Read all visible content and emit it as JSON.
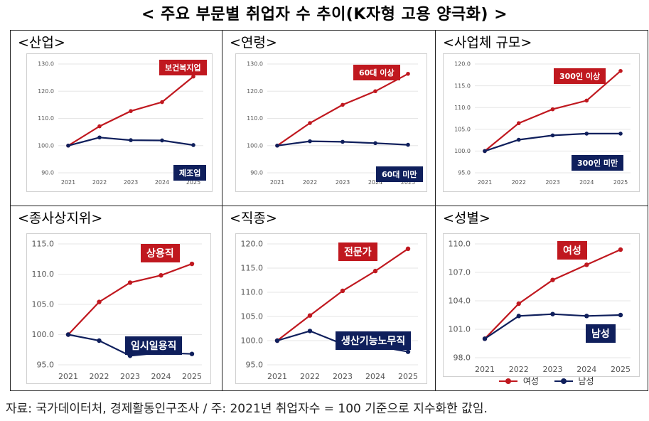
{
  "page": {
    "title": "< 주요 부문별 취업자 수 추이(K자형 고용 양극화) >",
    "source": "자료: 국가데이터처, 경제활동인구조사 / 주: 2021년 취업자수 = 100 기준으로 지수화한 값임."
  },
  "colors": {
    "upper": "#c0181f",
    "lower": "#0f1f5c"
  },
  "chart_data": [
    {
      "id": "industry",
      "type": "line",
      "title": "<산업>",
      "categories": [
        "2021",
        "2022",
        "2023",
        "2024",
        "2025"
      ],
      "ylim": [
        90,
        130
      ],
      "yticks": [
        "90.0",
        "100.0",
        "110.0",
        "120.0",
        "130.0"
      ],
      "series": [
        {
          "name": "보건복지업",
          "values": [
            100,
            107.1,
            112.7,
            116.0,
            125.4
          ]
        },
        {
          "name": "제조업",
          "values": [
            100,
            103.0,
            102.0,
            101.9,
            100.2
          ]
        }
      ]
    },
    {
      "id": "age",
      "type": "line",
      "title": "<연령>",
      "categories": [
        "2021",
        "2022",
        "2023",
        "2024",
        "2025"
      ],
      "ylim": [
        90,
        130
      ],
      "yticks": [
        "90.0",
        "100.0",
        "110.0",
        "120.0",
        "130.0"
      ],
      "series": [
        {
          "name": "60대 이상",
          "values": [
            100,
            108.3,
            115.0,
            120.0,
            126.4
          ]
        },
        {
          "name": "60대 미만",
          "values": [
            100,
            101.6,
            101.4,
            100.9,
            100.3
          ]
        }
      ]
    },
    {
      "id": "size",
      "type": "line",
      "title": "<사업체 규모>",
      "categories": [
        "2021",
        "2022",
        "2023",
        "2024",
        "2025"
      ],
      "ylim": [
        95,
        120
      ],
      "yticks": [
        "95.0",
        "100.0",
        "105.0",
        "110.0",
        "115.0",
        "120.0"
      ],
      "series": [
        {
          "name": "300인 이상",
          "values": [
            100,
            106.4,
            109.6,
            111.6,
            118.4
          ]
        },
        {
          "name": "300인 미만",
          "values": [
            100,
            102.6,
            103.6,
            104.0,
            104.0
          ]
        }
      ]
    },
    {
      "id": "status",
      "type": "line",
      "title": "<종사상지위>",
      "categories": [
        "2021",
        "2022",
        "2023",
        "2024",
        "2025"
      ],
      "ylim": [
        95,
        115
      ],
      "yticks": [
        "95.0",
        "100.0",
        "105.0",
        "110.0",
        "115.0"
      ],
      "series": [
        {
          "name": "상용직",
          "values": [
            100,
            105.4,
            108.6,
            109.8,
            111.7
          ]
        },
        {
          "name": "임시일용직",
          "values": [
            100,
            99.0,
            96.5,
            97.0,
            96.8
          ]
        }
      ]
    },
    {
      "id": "occupation",
      "type": "line",
      "title": "<직종>",
      "categories": [
        "2021",
        "2022",
        "2023",
        "2024",
        "2025"
      ],
      "ylim": [
        95,
        120
      ],
      "yticks": [
        "95.0",
        "100.0",
        "105.0",
        "110.0",
        "115.0",
        "120.0"
      ],
      "series": [
        {
          "name": "전문가",
          "values": [
            100,
            105.2,
            110.3,
            114.4,
            119.0
          ]
        },
        {
          "name": "생산기능노무직",
          "values": [
            100,
            102.0,
            99.3,
            98.9,
            97.7
          ]
        }
      ]
    },
    {
      "id": "gender",
      "type": "line",
      "title": "<성별>",
      "categories": [
        "2021",
        "2022",
        "2023",
        "2024",
        "2025"
      ],
      "ylim": [
        98,
        110
      ],
      "yticks": [
        "98.0",
        "101.0",
        "104.0",
        "107.0",
        "110.0"
      ],
      "series": [
        {
          "name": "여성",
          "values": [
            100,
            103.7,
            106.2,
            107.8,
            109.4
          ]
        },
        {
          "name": "남성",
          "values": [
            100,
            102.4,
            102.6,
            102.4,
            102.5
          ]
        }
      ],
      "legend": [
        "여성",
        "남성"
      ]
    }
  ]
}
